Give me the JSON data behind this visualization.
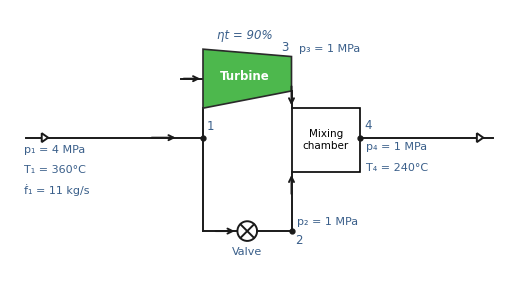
{
  "fig_width": 5.24,
  "fig_height": 2.95,
  "dpi": 100,
  "bg_color": "#ffffff",
  "text_color": "#3a5f8a",
  "line_color": "#1a1a1a",
  "turbine_color": "#4db84d",
  "turbine_edge": "#2a2a2a",
  "eta_label": "ηt = 90%",
  "turbine_label": "Turbine",
  "mixing_label": "Mixing\nchamber",
  "valve_label": "Valve",
  "p1_label": "p₁ = 4 MPa",
  "T1_label": "T₁ = 360°C",
  "m1_label": "ḟ₁ = 11 kg/s",
  "p3_label": "p₃ = 1 MPa",
  "p4_label": "p₄ = 1 MPa",
  "T4_label": "T₄ = 240°C",
  "p2_label": "p₂ = 1 MPa",
  "node1": "1",
  "node2": "2",
  "node3": "3",
  "node4": "4"
}
